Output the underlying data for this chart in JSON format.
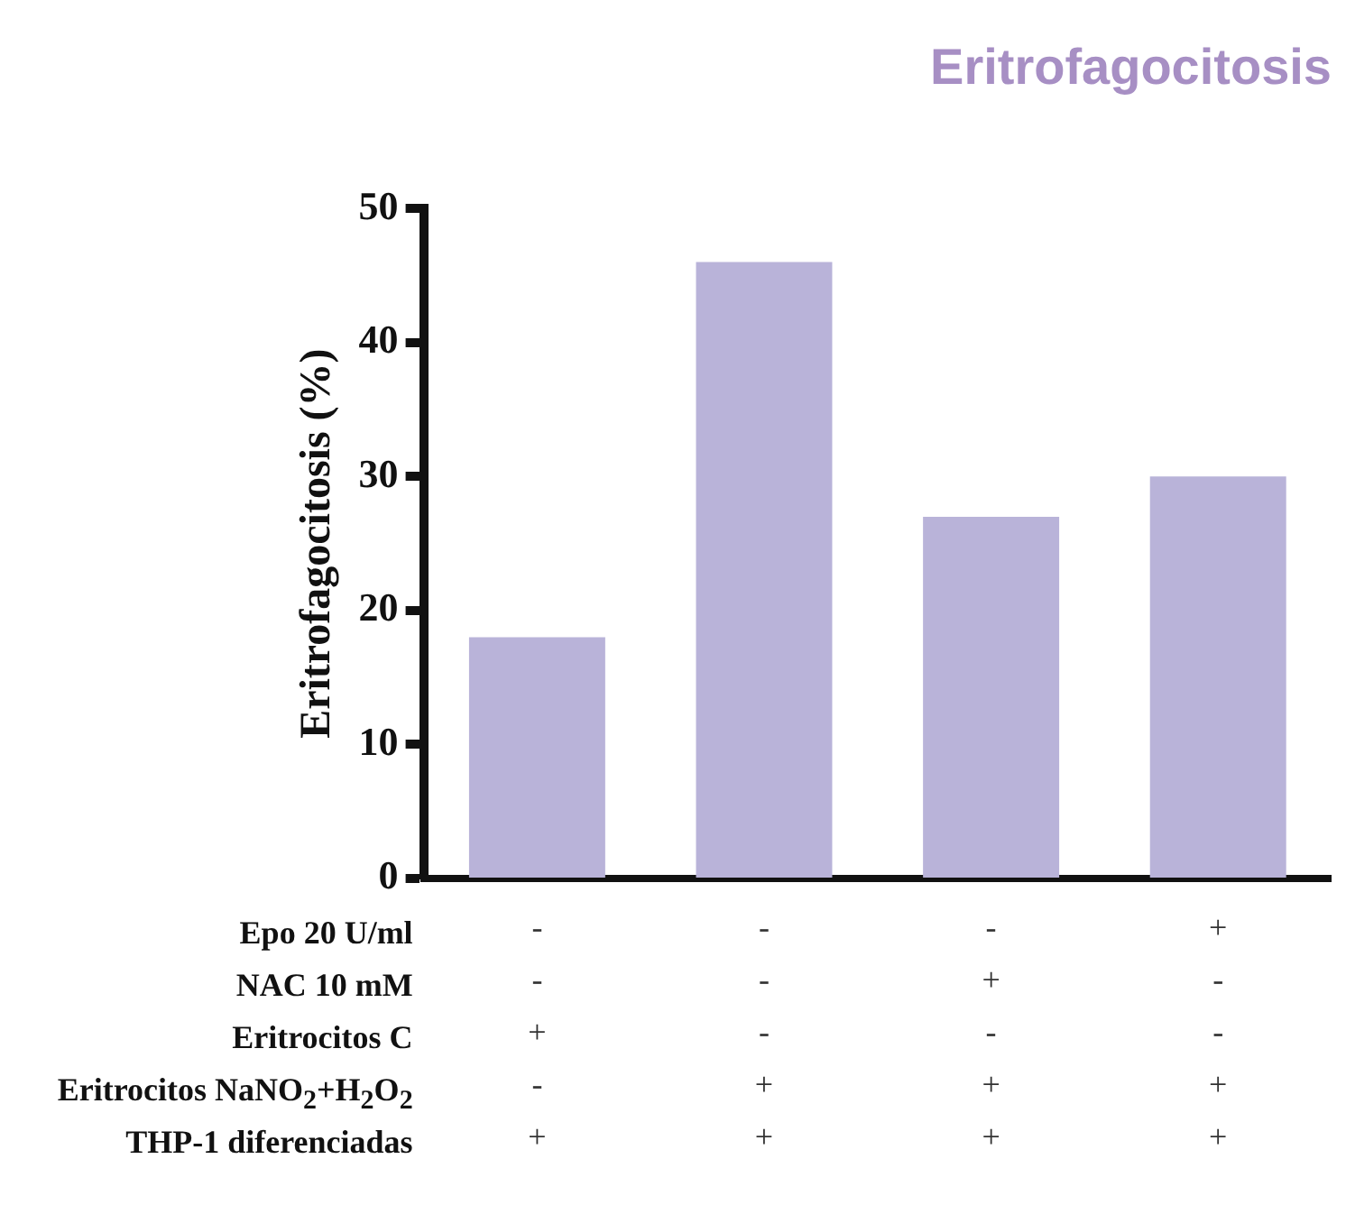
{
  "chart_data": {
    "type": "bar",
    "title": "Eritrofagocitosis",
    "ylabel": "Eritrofagocitosis (%)",
    "categories": [
      "-\n-\n+\n-\n+",
      "-\n-\n-\n+\n+",
      "-\n+\n-\n+\n+",
      "+\n-\n-\n+\n+"
    ],
    "values": [
      18,
      46,
      27,
      30
    ],
    "color": "#b9b3d9",
    "ylim": [
      0,
      50
    ],
    "yticks": [
      0,
      10,
      20,
      30,
      40,
      50
    ],
    "grid": false,
    "annotations": [
      "Epo 20 U/ml",
      "NAC 10 mM",
      "Eritrocitos C",
      "Eritrocitos NaNO$_{2}$+H$_{2}$O$_{2}$",
      "THP-1 diferenciadas"
    ]
  }
}
